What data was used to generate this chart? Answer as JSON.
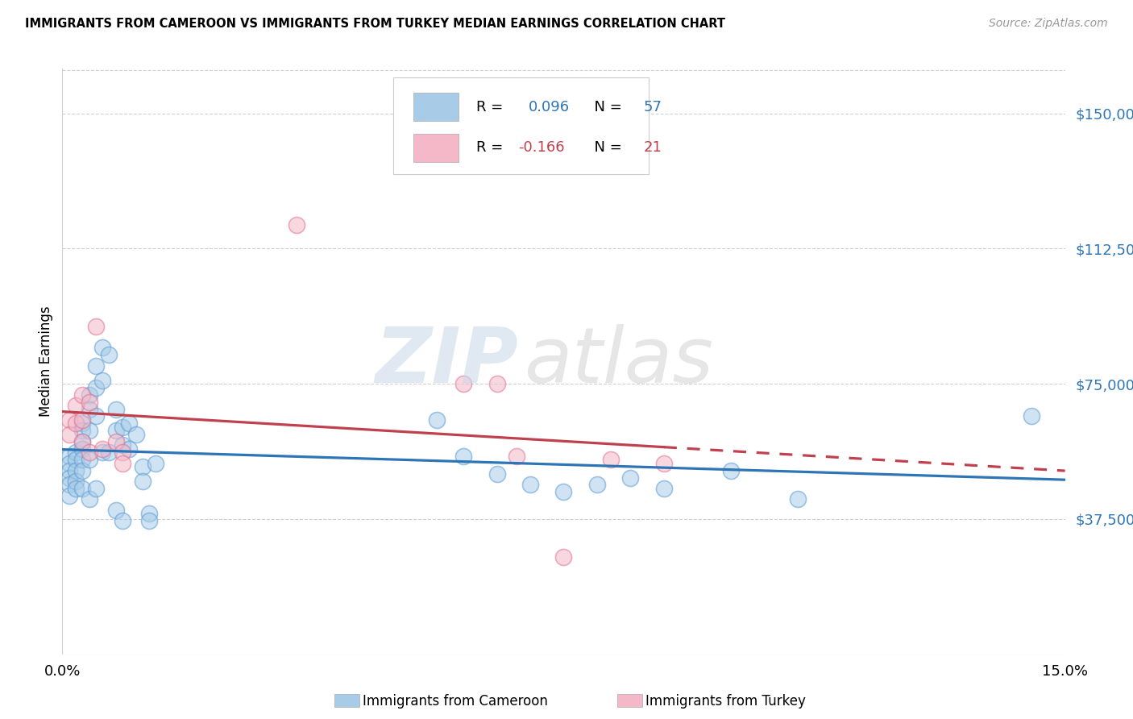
{
  "title": "IMMIGRANTS FROM CAMEROON VS IMMIGRANTS FROM TURKEY MEDIAN EARNINGS CORRELATION CHART",
  "source": "Source: ZipAtlas.com",
  "ylabel": "Median Earnings",
  "xlim": [
    0.0,
    0.15
  ],
  "ylim": [
    0,
    162500
  ],
  "yticks": [
    37500,
    75000,
    112500,
    150000
  ],
  "ytick_labels": [
    "$37,500",
    "$75,000",
    "$112,500",
    "$150,000"
  ],
  "color_blue_fill": "#a8cce8",
  "color_blue_edge": "#5b9bd5",
  "color_blue_line": "#2e75b6",
  "color_pink_fill": "#f4b8c8",
  "color_pink_edge": "#e07090",
  "color_pink_line": "#c0414e",
  "color_axis_blue": "#2e75b6",
  "color_axis_pink": "#c0414e",
  "color_grid": "#d0d0d0",
  "cameroon_x": [
    0.001,
    0.001,
    0.001,
    0.001,
    0.001,
    0.001,
    0.002,
    0.002,
    0.002,
    0.002,
    0.002,
    0.003,
    0.003,
    0.003,
    0.003,
    0.003,
    0.003,
    0.003,
    0.004,
    0.004,
    0.004,
    0.004,
    0.004,
    0.005,
    0.005,
    0.005,
    0.005,
    0.006,
    0.006,
    0.006,
    0.007,
    0.007,
    0.008,
    0.008,
    0.008,
    0.009,
    0.009,
    0.009,
    0.01,
    0.01,
    0.011,
    0.012,
    0.012,
    0.013,
    0.013,
    0.014,
    0.056,
    0.06,
    0.065,
    0.07,
    0.075,
    0.08,
    0.085,
    0.09,
    0.1,
    0.11,
    0.145
  ],
  "cameroon_y": [
    55000,
    53000,
    51000,
    49000,
    47000,
    44000,
    56000,
    54000,
    51000,
    48000,
    46000,
    64000,
    62000,
    59000,
    57000,
    54000,
    51000,
    46000,
    72000,
    68000,
    62000,
    54000,
    43000,
    80000,
    74000,
    66000,
    46000,
    85000,
    76000,
    56000,
    83000,
    56000,
    68000,
    62000,
    40000,
    63000,
    58000,
    37000,
    64000,
    57000,
    61000,
    52000,
    48000,
    39000,
    37000,
    53000,
    65000,
    55000,
    50000,
    47000,
    45000,
    47000,
    49000,
    46000,
    51000,
    43000,
    66000
  ],
  "turkey_x": [
    0.001,
    0.001,
    0.002,
    0.002,
    0.003,
    0.003,
    0.003,
    0.004,
    0.004,
    0.005,
    0.006,
    0.008,
    0.009,
    0.009,
    0.035,
    0.06,
    0.065,
    0.068,
    0.075,
    0.082,
    0.09
  ],
  "turkey_y": [
    65000,
    61000,
    69000,
    64000,
    72000,
    65000,
    59000,
    70000,
    56000,
    91000,
    57000,
    59000,
    56000,
    53000,
    119000,
    75000,
    75000,
    55000,
    27000,
    54000,
    53000
  ]
}
